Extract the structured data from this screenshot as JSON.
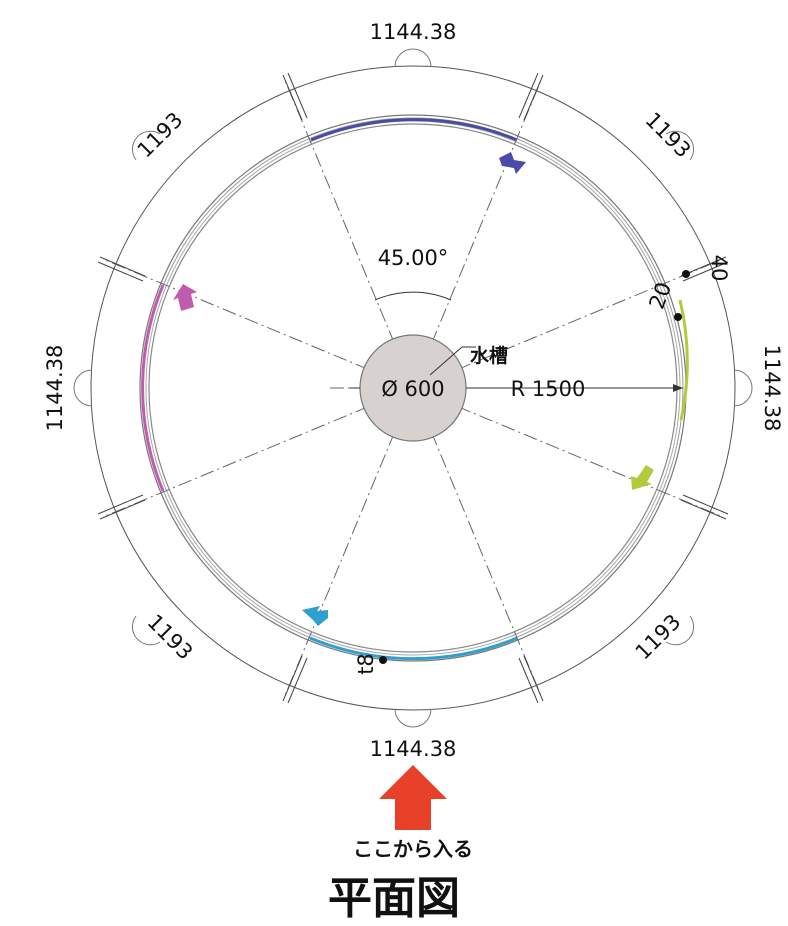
{
  "title": "平面図",
  "entrance_label": "ここから入る",
  "tank": {
    "label": "水槽",
    "diameter_label": "Ø 600"
  },
  "radius_label": "R 1500",
  "angle_label": "45.00°",
  "chord_dims": {
    "top": "1144.38",
    "bottom": "1144.38",
    "left": "1144.38",
    "right": "1144.38"
  },
  "arc_dims": {
    "upper_left": "1193",
    "upper_right": "1193",
    "lower_left": "1193",
    "lower_right": "1193"
  },
  "detail_dims": {
    "d40": "40",
    "d20": "20",
    "t8": "t8"
  },
  "colors": {
    "arc_top": "#4a4aa8",
    "arc_left": "#c05cad",
    "arc_right": "#b5c93d",
    "arc_bottom": "#2f9fd0",
    "entrance_arrow": "#e8412a",
    "tank_fill": "#d7d2cf"
  }
}
